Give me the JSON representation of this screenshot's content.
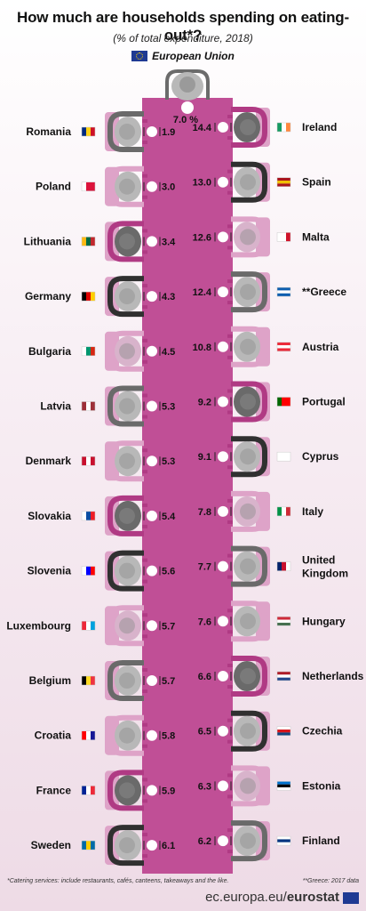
{
  "header": {
    "title": "How much are households spending on eating-out*?",
    "subtitle": "(% of total expenditure, 2018)",
    "eu_label": "European Union"
  },
  "chart_data": {
    "type": "pictogram-bar",
    "unit": "%",
    "eu_value": "7.0 %",
    "left": [
      {
        "country": "Romania",
        "value": 1.9
      },
      {
        "country": "Poland",
        "value": 3.0
      },
      {
        "country": "Lithuania",
        "value": 3.4
      },
      {
        "country": "Germany",
        "value": 4.3
      },
      {
        "country": "Bulgaria",
        "value": 4.5
      },
      {
        "country": "Latvia",
        "value": 5.3
      },
      {
        "country": "Denmark",
        "value": 5.3
      },
      {
        "country": "Slovakia",
        "value": 5.4
      },
      {
        "country": "Slovenia",
        "value": 5.6
      },
      {
        "country": "Luxembourg",
        "value": 5.7
      },
      {
        "country": "Belgium",
        "value": 5.7
      },
      {
        "country": "Croatia",
        "value": 5.8
      },
      {
        "country": "France",
        "value": 5.9
      },
      {
        "country": "Sweden",
        "value": 6.1
      }
    ],
    "right": [
      {
        "country": "Ireland",
        "value": 14.4
      },
      {
        "country": "Spain",
        "value": 13.0
      },
      {
        "country": "Malta",
        "value": 12.6
      },
      {
        "country": "**Greece",
        "value": 12.4
      },
      {
        "country": "Austria",
        "value": 10.8
      },
      {
        "country": "Portugal",
        "value": 9.2
      },
      {
        "country": "Cyprus",
        "value": 9.1
      },
      {
        "country": "Italy",
        "value": 7.8
      },
      {
        "country": "United Kingdom",
        "value": 7.7
      },
      {
        "country": "Hungary",
        "value": 7.6
      },
      {
        "country": "Netherlands",
        "value": 6.6
      },
      {
        "country": "Czechia",
        "value": 6.5
      },
      {
        "country": "Estonia",
        "value": 6.3
      },
      {
        "country": "Finland",
        "value": 6.2
      }
    ],
    "colors": {
      "table": "#c04f96",
      "accent": "#b03a84",
      "light_pink": "#dea3c8",
      "grey": "#b8b8b8",
      "dark": "#555555"
    }
  },
  "footer": {
    "footnote_left": "*Catering services: include restaurants, cafés, canteens, takeaways and the like.",
    "footnote_right": "**Greece: 2017 data",
    "source_prefix": "ec.europa.eu/",
    "source_brand": "eurostat"
  }
}
